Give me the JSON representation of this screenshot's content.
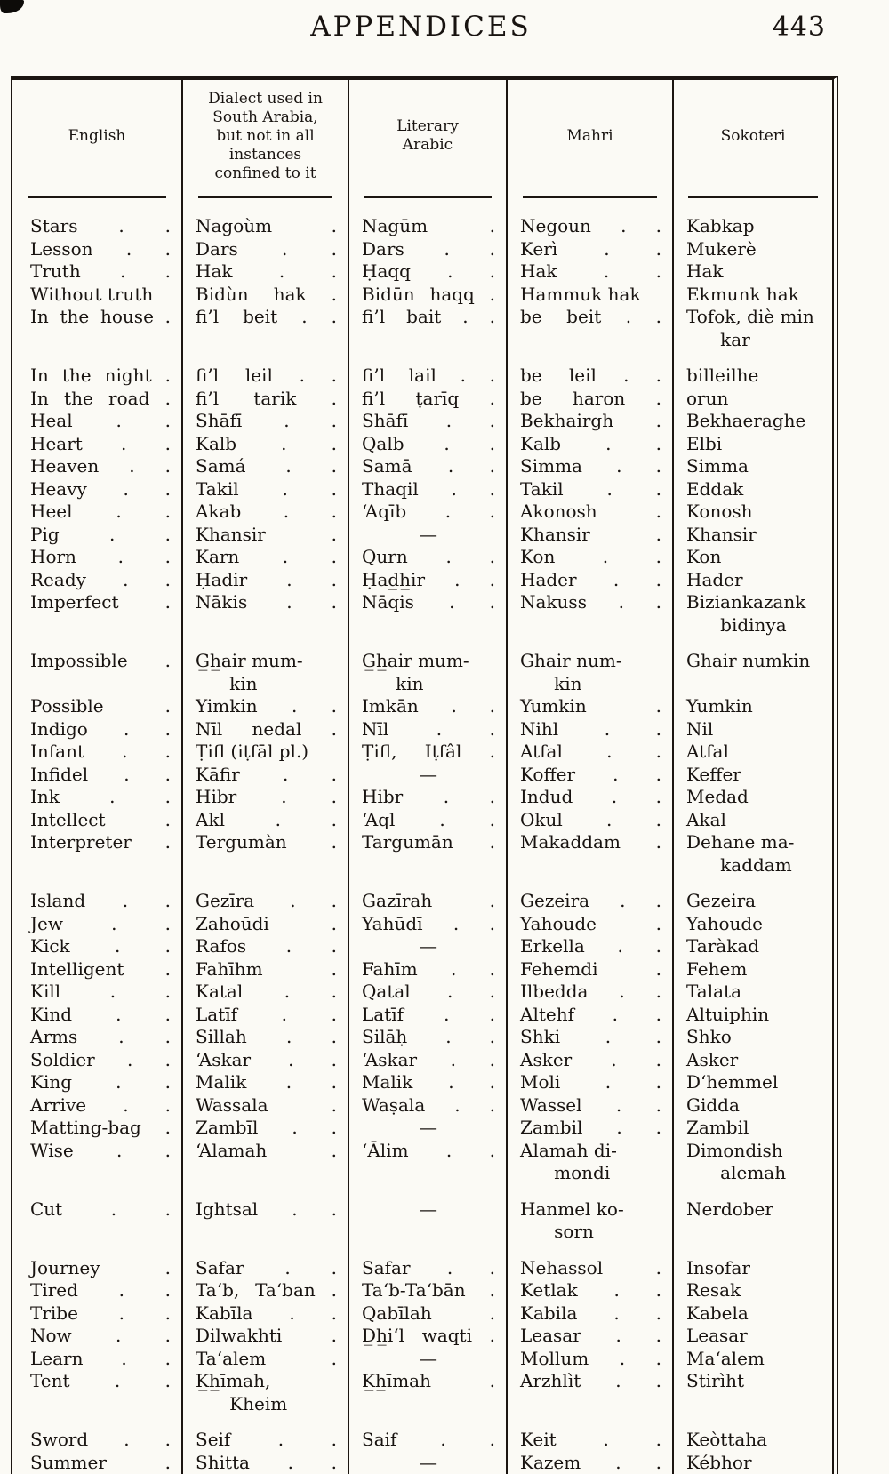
{
  "header": {
    "title": "APPENDICES",
    "page_number": "443"
  },
  "table": {
    "columns": [
      "English",
      "Dialect used in\nSouth Arabia,\nbut not in all\ninstances\nconfined to it",
      "Literary\nArabic",
      "Mahri",
      "Sokoteri"
    ],
    "rows": [
      {
        "g": 0,
        "c": [
          "Stars . .",
          "Nagoùm .",
          "Nagūm .",
          "Negoun . .",
          "Kabkap"
        ]
      },
      {
        "g": 0,
        "c": [
          "Lesson . .",
          "Dars . .",
          "Dars . .",
          "Kerì . .",
          "Mukerè"
        ]
      },
      {
        "g": 0,
        "c": [
          "Truth . .",
          "Hak . .",
          "Ḥaqq . .",
          "Hak . .",
          "Hak"
        ]
      },
      {
        "g": 0,
        "c": [
          "Without truth",
          "Bidùn hak .",
          "Bidūn haqq .",
          "Hammuk hak",
          "Ekmunk hak"
        ]
      },
      {
        "g": 0,
        "c": [
          "In the house .",
          "fi’l beit . .",
          "fi’l bait . .",
          "be beit . .",
          "Tofok, diè min\n      kar"
        ]
      },
      {
        "g": 1,
        "c": [
          "In the night .",
          "fi’l leil . .",
          "fi’l lail . .",
          "be leil . .",
          "billeilhe"
        ]
      },
      {
        "g": 0,
        "c": [
          "In the road .",
          "fi’l tarik .",
          "fi’l ṭarīq .",
          "be haron .",
          "orun"
        ]
      },
      {
        "g": 0,
        "c": [
          "Heal . .",
          "Shāfī . .",
          "Shāfī . .",
          "Bekhairgh .",
          "Bekhaeraghe"
        ]
      },
      {
        "g": 0,
        "c": [
          "Heart . .",
          "Kalb . .",
          "Qalb . .",
          "Kalb . .",
          "Elbi"
        ]
      },
      {
        "g": 0,
        "c": [
          "Heaven . .",
          "Samá . .",
          "Samā . .",
          "Simma . .",
          "Simma"
        ]
      },
      {
        "g": 0,
        "c": [
          "Heavy . .",
          "Takil . .",
          "Thaqil . .",
          "Takil . .",
          "Eddak"
        ]
      },
      {
        "g": 0,
        "c": [
          "Heel . .",
          "Akab . .",
          "‘Aqīb . .",
          "Akonosh .",
          "Konosh"
        ]
      },
      {
        "g": 0,
        "c": [
          "Pig . .",
          "Khansir .",
          "—",
          "Khansir .",
          "Khansir"
        ]
      },
      {
        "g": 0,
        "c": [
          "Horn . .",
          "Karn . .",
          "Qurn . .",
          "Kon . .",
          "Kon"
        ]
      },
      {
        "g": 0,
        "c": [
          "Ready . .",
          "Ḥadir . .",
          "Ḥad̲h̲ir . .",
          "Hader . .",
          "Hader"
        ]
      },
      {
        "g": 0,
        "c": [
          "Imperfect .",
          "Nākis . .",
          "Nāqis . .",
          "Nakuss . .",
          "Biziankazank\n      bidinya"
        ]
      },
      {
        "g": 1,
        "c": [
          "Impossible .",
          "G̲h̲air mum-\n      kin",
          "G̲h̲air mum-\n      kin",
          "Ghair num-\n      kin",
          "Ghair numkin"
        ]
      },
      {
        "g": 0,
        "c": [
          "Possible .",
          "Yimkin . .",
          "Imkān . .",
          "Yumkin .",
          "Yumkin"
        ]
      },
      {
        "g": 0,
        "c": [
          "Indigo . .",
          "Nīl nedal .",
          "Nīl . .",
          "Nihl . .",
          "Nil"
        ]
      },
      {
        "g": 0,
        "c": [
          "Infant . .",
          "Ṭifl (iṭfāl pl.)",
          "Ṭifl, Iṭfâl .",
          "Atfal . .",
          "Atfal"
        ]
      },
      {
        "g": 0,
        "c": [
          "Infidel . .",
          "Kāfir . .",
          "—",
          "Koffer . .",
          "Keffer"
        ]
      },
      {
        "g": 0,
        "c": [
          "Ink . .",
          "Hibr . .",
          "Hibr . .",
          "Indud . .",
          "Medad"
        ]
      },
      {
        "g": 0,
        "c": [
          "Intellect .",
          "Akl . .",
          "‘Aql . .",
          "Okul . .",
          "Akal"
        ]
      },
      {
        "g": 0,
        "c": [
          "Interpreter .",
          "Tergumàn .",
          "Targumān .",
          "Makaddam .",
          "Dehane ma-\n      kaddam"
        ]
      },
      {
        "g": 1,
        "c": [
          "Island . .",
          "Gezīra . .",
          "Gazīrah .",
          "Gezeira . .",
          "Gezeira"
        ]
      },
      {
        "g": 0,
        "c": [
          "Jew . .",
          "Zahoūdi .",
          "Yahūdī . .",
          "Yahoude .",
          "Yahoude"
        ]
      },
      {
        "g": 0,
        "c": [
          "Kick . .",
          "Rafos . .",
          "—",
          "Erkella . .",
          "Taràkad"
        ]
      },
      {
        "g": 0,
        "c": [
          "Intelligent .",
          "Fahīhm .",
          "Fahīm . .",
          "Fehemdi .",
          "Fehem"
        ]
      },
      {
        "g": 0,
        "c": [
          "Kill . .",
          "Katal . .",
          "Qatal . .",
          "Ilbedda . .",
          "Talata"
        ]
      },
      {
        "g": 0,
        "c": [
          "Kind . .",
          "Latīf . .",
          "Latīf . .",
          "Altehf . .",
          "Altuiphin"
        ]
      },
      {
        "g": 0,
        "c": [
          "Arms . .",
          "Sillah . .",
          "Silāḥ . .",
          "Shki . .",
          "Shko"
        ]
      },
      {
        "g": 0,
        "c": [
          "Soldier . .",
          "‘Askar . .",
          "‘Askar . .",
          "Asker . .",
          "Asker"
        ]
      },
      {
        "g": 0,
        "c": [
          "King . .",
          "Malik . .",
          "Malik . .",
          "Moli . .",
          "D‘hemmel"
        ]
      },
      {
        "g": 0,
        "c": [
          "Arrive . .",
          "Wassala .",
          "Waṣala . .",
          "Wassel . .",
          "Gidda"
        ]
      },
      {
        "g": 0,
        "c": [
          "Matting-bag .",
          "Zambīl . .",
          "—",
          "Zambil . .",
          "Zambil"
        ]
      },
      {
        "g": 0,
        "c": [
          "Wise . .",
          "‘Alamah .",
          "‘Ālim . .",
          "Alamah di-\n      mondi",
          "Dimondish\n      alemah"
        ]
      },
      {
        "g": 1,
        "c": [
          "Cut . .",
          "Ightsal . .",
          "—",
          "Hanmel ko-\n      sorn",
          "Nerdober"
        ]
      },
      {
        "g": 1,
        "c": [
          "Journey .",
          "Safar . .",
          "Safar . .",
          "Nehassol .",
          "Insofar"
        ]
      },
      {
        "g": 0,
        "c": [
          "Tired . .",
          "Ta‘b, Ta‘ban .",
          "Ta‘b-Ta‘bān .",
          "Ketlak . .",
          "Resak"
        ]
      },
      {
        "g": 0,
        "c": [
          "Tribe . .",
          "Kabīla . .",
          "Qabīlah .",
          "Kabila . .",
          "Kabela"
        ]
      },
      {
        "g": 0,
        "c": [
          "Now . .",
          "Dilwakhti .",
          "D̲h̲i‘l waqti .",
          "Leasar . .",
          "Leasar"
        ]
      },
      {
        "g": 0,
        "c": [
          "Learn . .",
          "Ta‘alem .",
          "—",
          "Mollum . .",
          "Ma‘alem"
        ]
      },
      {
        "g": 0,
        "c": [
          "Tent . .",
          "K̲h̲īmah,\n      Kheim",
          "K̲h̲īmah .",
          "Arzhlìt . .",
          "Stirìht"
        ]
      },
      {
        "g": 1,
        "c": [
          "Sword . .",
          "Seif . .",
          "Saif . .",
          "Keit . .",
          "Keòttaha"
        ]
      },
      {
        "g": 0,
        "c": [
          "Summer .",
          "Shitta . .",
          "—",
          "Kazem . .",
          "Kébhor"
        ]
      }
    ]
  }
}
